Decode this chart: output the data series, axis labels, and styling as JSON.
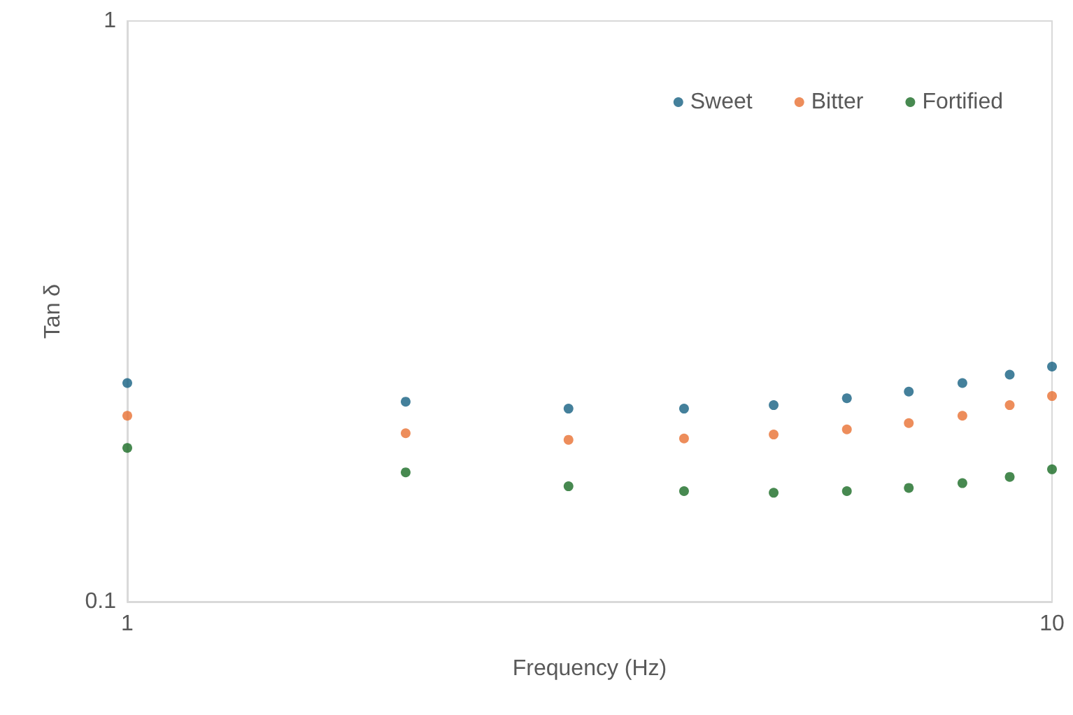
{
  "chart_data": {
    "type": "scatter",
    "xlabel": "Frequency (Hz)",
    "ylabel": "Tan δ",
    "log": "xy",
    "x": [
      1,
      2,
      3,
      4,
      5,
      6,
      7,
      8,
      9,
      10
    ],
    "xlim": [
      1,
      10
    ],
    "xticks": [
      1,
      10
    ],
    "ylim": [
      0.1,
      1
    ],
    "yticks": [
      0.1,
      1
    ],
    "grid": false,
    "legend": "top right",
    "marker": "circle",
    "series": [
      {
        "name": "Sweet",
        "color": "#156082",
        "values": [
          0.238,
          0.221,
          0.215,
          0.215,
          0.218,
          0.224,
          0.23,
          0.238,
          0.246,
          0.254
        ]
      },
      {
        "name": "Bitter",
        "color": "#e97132",
        "values": [
          0.209,
          0.195,
          0.19,
          0.191,
          0.194,
          0.198,
          0.203,
          0.209,
          0.218,
          0.226
        ]
      },
      {
        "name": "Fortified",
        "color": "#196b24",
        "values": [
          0.184,
          0.167,
          0.158,
          0.155,
          0.154,
          0.155,
          0.157,
          0.16,
          0.164,
          0.169
        ]
      }
    ]
  }
}
